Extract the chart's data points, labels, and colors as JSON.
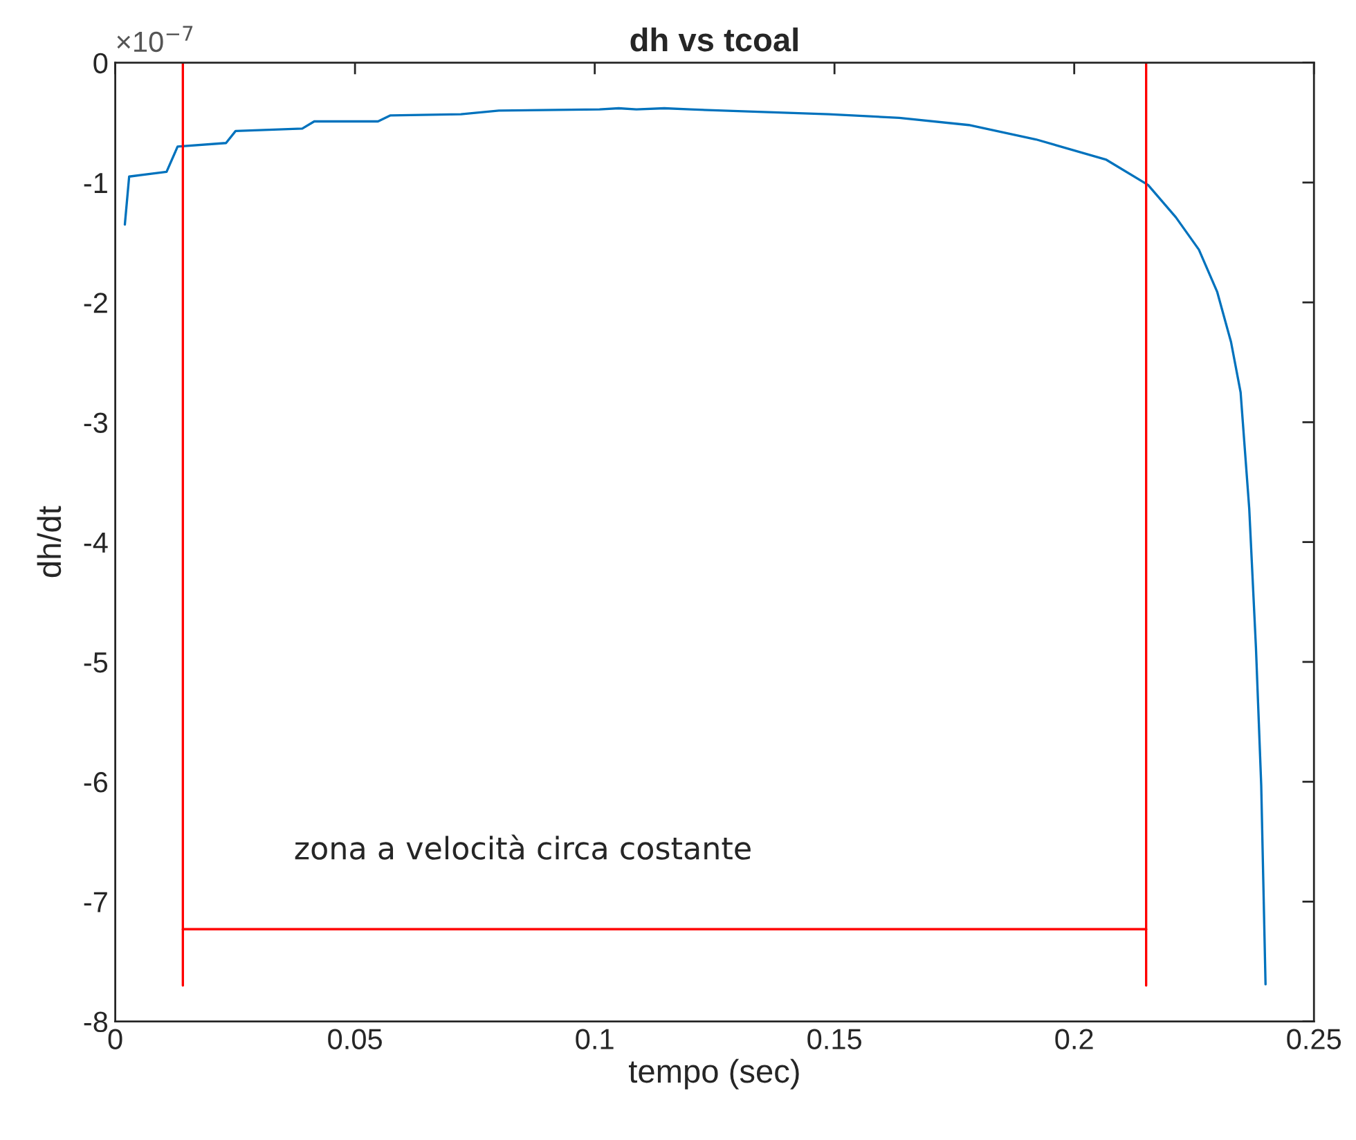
{
  "chart_data": {
    "type": "line",
    "title": "dh vs tcoal",
    "xlabel": "tempo (sec)",
    "ylabel": "dh/dt",
    "xlim": [
      0,
      0.25
    ],
    "xticks": [
      0,
      0.05,
      0.1,
      0.15,
      0.2,
      0.25
    ],
    "ylim": [
      -8,
      0
    ],
    "yticks": [
      0,
      -1,
      -2,
      -3,
      -4,
      -5,
      -6,
      -7,
      -8
    ],
    "grid": false,
    "line_style": "solid",
    "marker": "none",
    "series": [
      {
        "color": "#0072bd",
        "x": [
          0.002,
          0.0029,
          0.0107,
          0.013,
          0.0231,
          0.0251,
          0.039,
          0.0415,
          0.0548,
          0.0574,
          0.0721,
          0.08,
          0.101,
          0.105,
          0.1087,
          0.1145,
          0.12,
          0.1488,
          0.1635,
          0.178,
          0.192,
          0.2067,
          0.2154,
          0.2212,
          0.226,
          0.2298,
          0.2327,
          0.2347,
          0.2365,
          0.2379,
          0.239,
          0.2399
        ],
        "values": [
          -1.35,
          -0.95,
          -0.91,
          -0.7,
          -0.67,
          -0.57,
          -0.55,
          -0.49,
          -0.49,
          -0.44,
          -0.43,
          -0.4,
          -0.39,
          -0.38,
          -0.39,
          -0.38,
          -0.39,
          -0.43,
          -0.46,
          -0.52,
          -0.64,
          -0.81,
          -1.02,
          -1.29,
          -1.56,
          -1.91,
          -2.33,
          -2.75,
          -3.72,
          -4.88,
          -6.03,
          -7.69
        ]
      },
      {
        "color": "#ff0000",
        "x": [
          0.0141,
          0.0141
        ],
        "values": [
          -7.7,
          0
        ]
      },
      {
        "color": "#ff0000",
        "x": [
          0.215,
          0.215
        ],
        "values": [
          -7.7,
          0
        ]
      },
      {
        "color": "#ff0000",
        "x": [
          0.0141,
          0.215
        ],
        "values": [
          -7.23,
          -7.23
        ]
      }
    ],
    "annotations": [
      "×10$^{−7}$",
      "zona a velocità circa costante"
    ]
  }
}
